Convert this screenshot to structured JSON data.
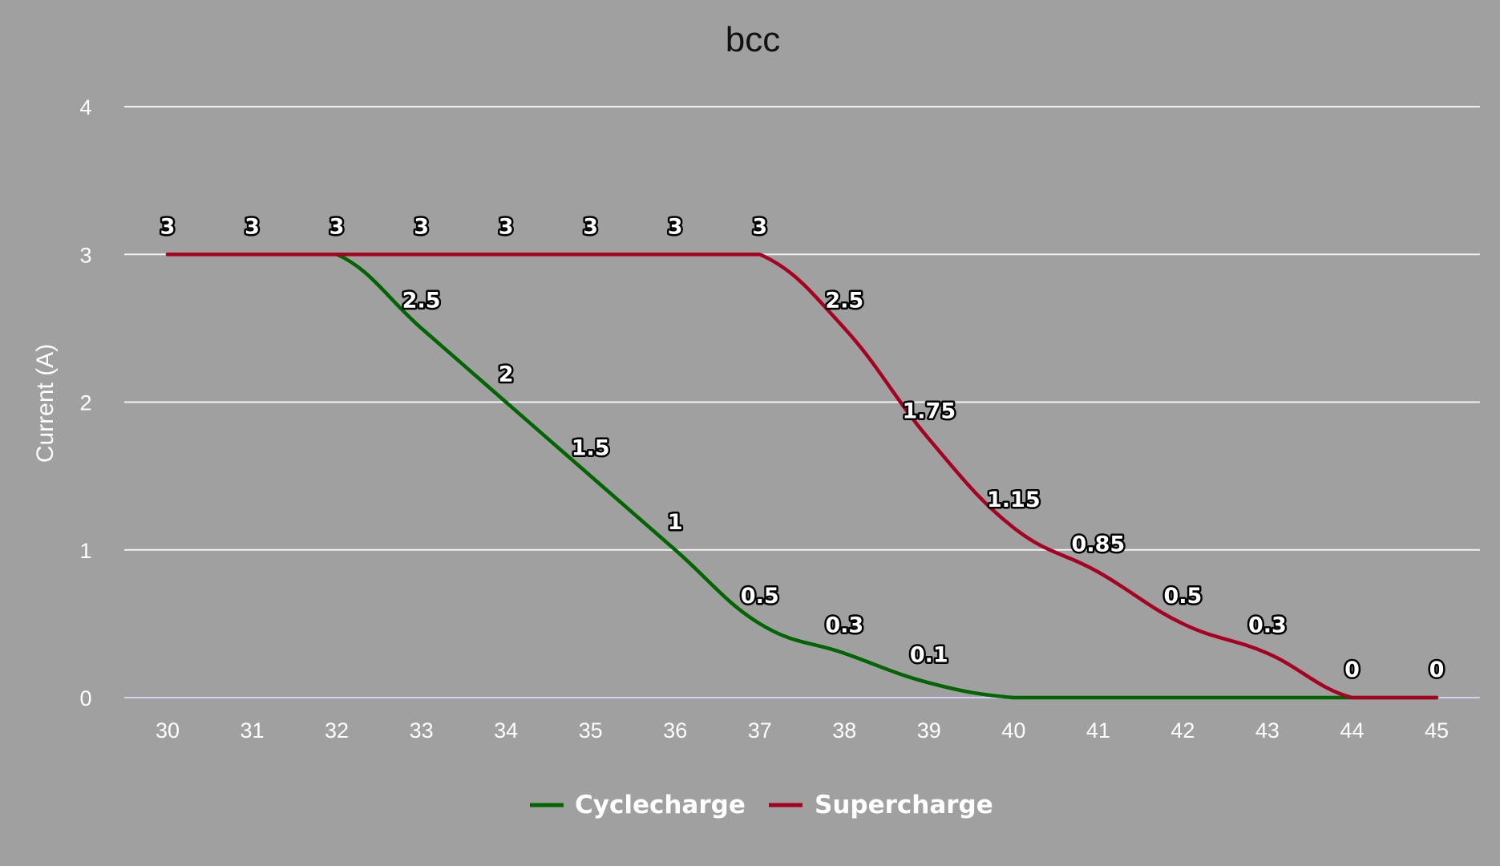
{
  "chart_data": {
    "type": "line",
    "title": "bcc",
    "xlabel": "",
    "ylabel": "Current (A)",
    "x": [
      30,
      31,
      32,
      33,
      34,
      35,
      36,
      37,
      38,
      39,
      40,
      41,
      42,
      43,
      44,
      45
    ],
    "x_tick_labels": [
      "30",
      "31",
      "32",
      "33",
      "34",
      "35",
      "36",
      "37",
      "38",
      "39",
      "40",
      "41",
      "42",
      "43",
      "44",
      "45"
    ],
    "ylim": [
      0,
      4
    ],
    "y_ticks": [
      0,
      1,
      2,
      3,
      4
    ],
    "y_tick_labels": [
      "0",
      "1",
      "2",
      "3",
      "4"
    ],
    "grid": true,
    "legend_position": "bottom",
    "series": [
      {
        "name": "Cyclecharge",
        "color": "#006400",
        "values": [
          3,
          3,
          3,
          2.5,
          2,
          1.5,
          1,
          0.5,
          0.3,
          0.1,
          0,
          0,
          0,
          0,
          0,
          0
        ],
        "labels": [
          "",
          "",
          "",
          "2.5",
          "2",
          "1.5",
          "1",
          "0.5",
          "0.3",
          "0.1",
          "",
          "",
          "",
          "",
          "",
          ""
        ]
      },
      {
        "name": "Supercharge",
        "color": "#a50021",
        "values": [
          3,
          3,
          3,
          3,
          3,
          3,
          3,
          3,
          2.5,
          1.75,
          1.15,
          0.85,
          0.5,
          0.3,
          0,
          0
        ],
        "labels": [
          "3",
          "3",
          "3",
          "3",
          "3",
          "3",
          "3",
          "3",
          "2.5",
          "1.75",
          "1.15",
          "0.85",
          "0.5",
          "0.3",
          "0",
          "0"
        ]
      }
    ]
  }
}
